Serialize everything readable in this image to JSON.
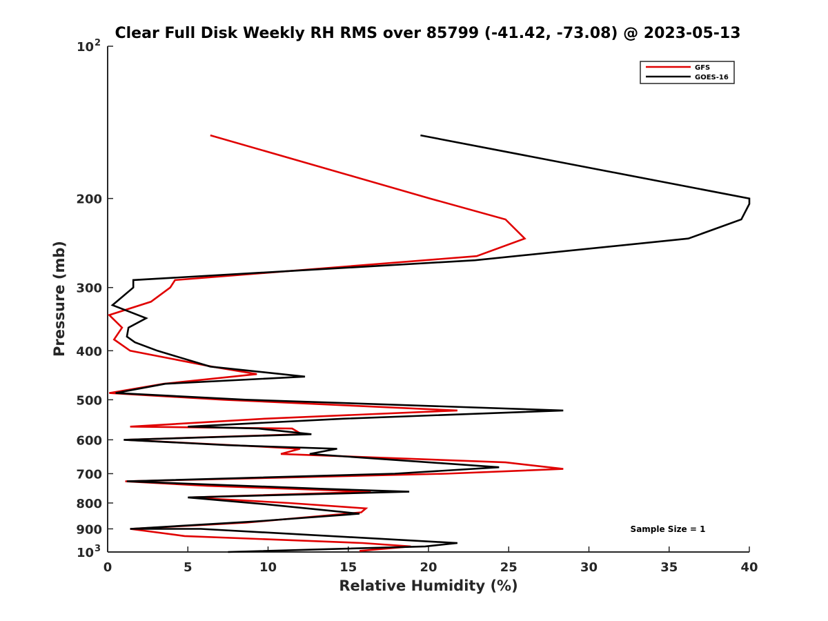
{
  "chart_data": {
    "type": "line",
    "title": "Clear Full Disk Weekly RH RMS over 85799 (-41.42, -73.08) @ 2023-05-13",
    "xlabel": "Relative Humidity (%)",
    "ylabel": "Pressure (mb)",
    "xlim": [
      0,
      40
    ],
    "ylim": [
      100,
      1000
    ],
    "yscale": "log",
    "y_reversed": true,
    "grid": false,
    "legend_position": "top-right",
    "x_ticks": [
      "0",
      "5",
      "10",
      "15",
      "20",
      "25",
      "30",
      "35",
      "40"
    ],
    "y_ticks": [
      {
        "value": 100,
        "label": "10",
        "sup": "2"
      },
      {
        "value": 200,
        "label": "200"
      },
      {
        "value": 300,
        "label": "300"
      },
      {
        "value": 400,
        "label": "400"
      },
      {
        "value": 500,
        "label": "500"
      },
      {
        "value": 600,
        "label": "600"
      },
      {
        "value": 700,
        "label": "700"
      },
      {
        "value": 800,
        "label": "800"
      },
      {
        "value": 900,
        "label": "900"
      },
      {
        "value": 1000,
        "label": "10",
        "sup": "3"
      }
    ],
    "annotation": "Sample Size = 1",
    "series": [
      {
        "name": "GFS",
        "color": "#e00000",
        "points": [
          [
            6.4,
            150
          ],
          [
            20.1,
            200
          ],
          [
            24.8,
            220
          ],
          [
            26.0,
            240
          ],
          [
            23.0,
            260
          ],
          [
            4.2,
            290
          ],
          [
            3.9,
            300
          ],
          [
            2.7,
            320
          ],
          [
            0.1,
            340
          ],
          [
            0.9,
            360
          ],
          [
            0.4,
            380
          ],
          [
            1.4,
            400
          ],
          [
            6.5,
            430
          ],
          [
            9.3,
            445
          ],
          [
            3.5,
            465
          ],
          [
            0.1,
            485
          ],
          [
            7.2,
            500
          ],
          [
            21.8,
            525
          ],
          [
            9.8,
            545
          ],
          [
            1.4,
            565
          ],
          [
            11.5,
            570
          ],
          [
            12.1,
            585
          ],
          [
            1.1,
            600
          ],
          [
            10.0,
            620
          ],
          [
            12.0,
            625
          ],
          [
            10.8,
            640
          ],
          [
            24.8,
            665
          ],
          [
            28.4,
            685
          ],
          [
            21.1,
            700
          ],
          [
            1.1,
            725
          ],
          [
            6.2,
            740
          ],
          [
            16.4,
            760
          ],
          [
            5.1,
            780
          ],
          [
            11.3,
            800
          ],
          [
            16.1,
            820
          ],
          [
            15.8,
            835
          ],
          [
            8.6,
            875
          ],
          [
            1.4,
            900
          ],
          [
            4.8,
            930
          ],
          [
            15.9,
            960
          ],
          [
            18.9,
            975
          ],
          [
            15.7,
            995
          ]
        ]
      },
      {
        "name": "GOES-16",
        "color": "#000000",
        "points": [
          [
            19.5,
            150
          ],
          [
            40.0,
            200
          ],
          [
            40.0,
            205
          ],
          [
            39.5,
            220
          ],
          [
            36.2,
            240
          ],
          [
            22.9,
            265
          ],
          [
            1.6,
            290
          ],
          [
            1.6,
            300
          ],
          [
            0.3,
            325
          ],
          [
            2.4,
            345
          ],
          [
            1.3,
            360
          ],
          [
            1.2,
            375
          ],
          [
            1.7,
            385
          ],
          [
            3.1,
            400
          ],
          [
            6.4,
            430
          ],
          [
            12.3,
            450
          ],
          [
            3.6,
            465
          ],
          [
            0.5,
            485
          ],
          [
            8.6,
            500
          ],
          [
            28.4,
            525
          ],
          [
            14.7,
            545
          ],
          [
            5.0,
            565
          ],
          [
            9.4,
            570
          ],
          [
            12.7,
            585
          ],
          [
            1.0,
            600
          ],
          [
            7.5,
            615
          ],
          [
            14.3,
            625
          ],
          [
            12.6,
            640
          ],
          [
            24.4,
            680
          ],
          [
            17.9,
            700
          ],
          [
            1.2,
            725
          ],
          [
            13.4,
            750
          ],
          [
            18.8,
            760
          ],
          [
            5.0,
            780
          ],
          [
            9.9,
            805
          ],
          [
            14.1,
            830
          ],
          [
            15.7,
            840
          ],
          [
            9.2,
            870
          ],
          [
            1.4,
            900
          ],
          [
            5.8,
            900
          ],
          [
            21.8,
            960
          ],
          [
            19.8,
            975
          ],
          [
            7.5,
            1000
          ]
        ]
      }
    ]
  }
}
